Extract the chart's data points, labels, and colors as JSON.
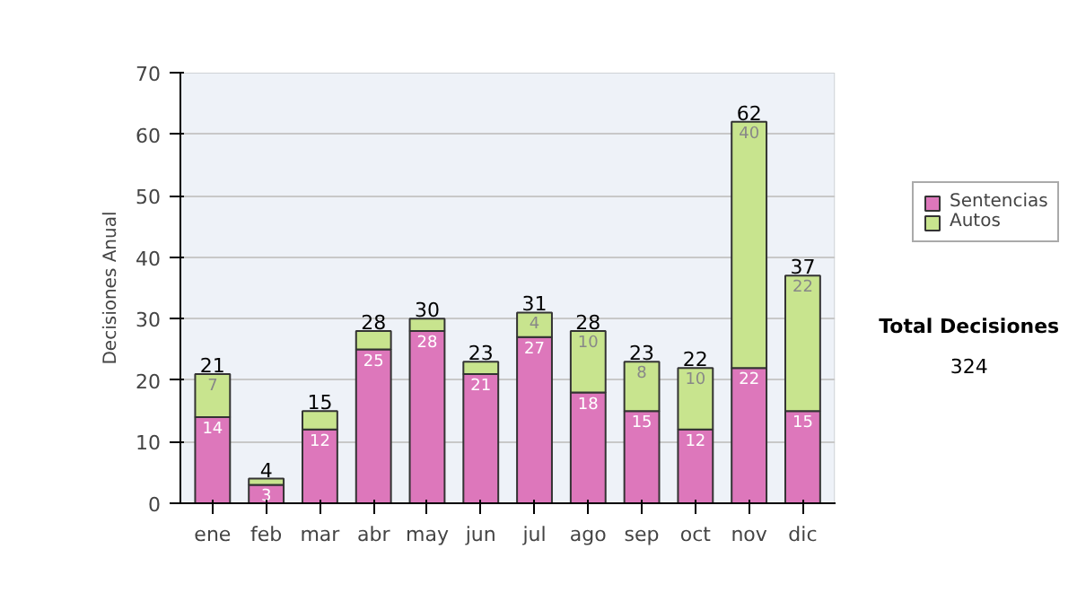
{
  "chart_data": {
    "type": "bar",
    "stacked": true,
    "ylabel": "Decisiones Anual",
    "categories": [
      "ene",
      "feb",
      "mar",
      "abr",
      "may",
      "jun",
      "jul",
      "ago",
      "sep",
      "oct",
      "nov",
      "dic"
    ],
    "series": [
      {
        "name": "Sentencias",
        "color": "#dd77bb",
        "values": [
          14,
          3,
          12,
          25,
          28,
          21,
          27,
          18,
          15,
          12,
          22,
          15
        ],
        "value_labels": [
          "14",
          "3",
          "12",
          "25",
          "28",
          "21",
          "27",
          "18",
          "15",
          "12",
          "22",
          "15"
        ]
      },
      {
        "name": "Autos",
        "color": "#c8e48e",
        "values": [
          7,
          1,
          3,
          3,
          2,
          2,
          4,
          10,
          8,
          10,
          40,
          22
        ],
        "value_labels": [
          "7",
          null,
          null,
          null,
          null,
          null,
          "4",
          "10",
          "8",
          "10",
          "40",
          "22"
        ]
      }
    ],
    "totals": [
      "21",
      "4",
      "15",
      "28",
      "30",
      "23",
      "31",
      "28",
      "23",
      "22",
      "62",
      "37"
    ],
    "ylim": [
      0,
      70
    ],
    "yticks": [
      0,
      10,
      20,
      30,
      40,
      50,
      60,
      70
    ],
    "grid": "y",
    "legend": "right",
    "annotations": [
      "Total Decisiones",
      "324"
    ]
  }
}
